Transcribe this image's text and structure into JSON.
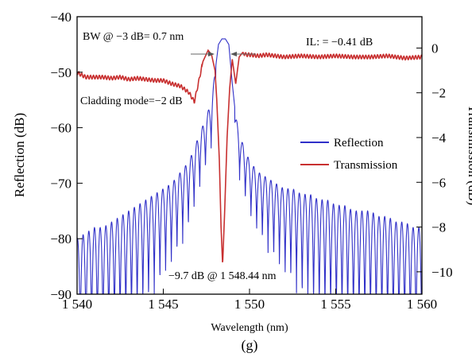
{
  "chart_data": {
    "type": "line",
    "panel_label": "(g)",
    "xlabel": "Wavelength (nm)",
    "ylabel_left": "Reflection (dB)",
    "ylabel_right": "Transmission (dB)",
    "xlim": [
      1540,
      1560
    ],
    "ylim_left": [
      -90,
      -40
    ],
    "ylim_right": [
      -11,
      1.4
    ],
    "x_ticks": [
      1540,
      1545,
      1550,
      1555,
      1560
    ],
    "x_tick_labels": [
      "1 540",
      "1 545",
      "1 550",
      "1 555",
      "1 560"
    ],
    "y_left_ticks": [
      -90,
      -80,
      -70,
      -60,
      -50,
      -40
    ],
    "y_left_tick_labels": [
      "−90",
      "−80",
      "−70",
      "−60",
      "−50",
      "−40"
    ],
    "y_right_ticks": [
      0,
      -2,
      -4,
      -6,
      -8,
      -10
    ],
    "y_right_tick_labels": [
      "0",
      "−2",
      "−4",
      "−6",
      "−8",
      "−10"
    ],
    "grid": false,
    "legend_position": "right",
    "series": [
      {
        "name": "Reflection",
        "axis": "left",
        "color": "#3030c8",
        "x": [
          1540.0,
          1540.5,
          1541.0,
          1541.5,
          1542.0,
          1542.5,
          1543.0,
          1543.5,
          1544.0,
          1544.5,
          1545.0,
          1545.5,
          1546.0,
          1546.5,
          1547.0,
          1547.5,
          1547.8,
          1548.0,
          1548.2,
          1548.4,
          1548.6,
          1548.8,
          1549.0,
          1549.2,
          1549.5,
          1550.0,
          1550.5,
          1551.0,
          1551.5,
          1552.0,
          1552.5,
          1553.0,
          1553.5,
          1554.0,
          1554.5,
          1555.0,
          1555.5,
          1556.0,
          1556.5,
          1557.0,
          1557.5,
          1558.0,
          1558.5,
          1559.0,
          1559.5,
          1560.0
        ],
        "envelope": [
          -80,
          -79,
          -78,
          -78,
          -77,
          -76,
          -75,
          -74,
          -73,
          -72,
          -71,
          -70,
          -68,
          -66,
          -62,
          -58,
          -55,
          -50,
          -45,
          -44,
          -44,
          -45,
          -52,
          -58,
          -62,
          -66,
          -68,
          -69,
          -70,
          -71,
          -71,
          -72,
          -72,
          -73,
          -73,
          -74,
          -74,
          -75,
          -75,
          -75,
          -76,
          -76,
          -77,
          -77,
          -78,
          -78
        ]
      },
      {
        "name": "Transmission",
        "axis": "right",
        "color": "#c83030",
        "x": [
          1540.0,
          1540.5,
          1541.0,
          1541.5,
          1542.0,
          1542.5,
          1543.0,
          1543.5,
          1544.0,
          1544.5,
          1545.0,
          1545.5,
          1546.0,
          1546.5,
          1546.8,
          1547.0,
          1547.3,
          1547.6,
          1547.8,
          1548.0,
          1548.1,
          1548.25,
          1548.35,
          1548.44,
          1548.55,
          1548.7,
          1548.85,
          1549.0,
          1549.2,
          1549.4,
          1549.6,
          1549.8,
          1550.0,
          1550.5,
          1551.0,
          1552.0,
          1553.0,
          1554.0,
          1555.0,
          1556.0,
          1557.0,
          1558.0,
          1559.0,
          1560.0
        ],
        "values": [
          -1.1,
          -1.3,
          -1.3,
          -1.3,
          -1.35,
          -1.3,
          -1.4,
          -1.35,
          -1.4,
          -1.45,
          -1.45,
          -1.6,
          -1.7,
          -2.0,
          -2.4,
          -1.7,
          -0.6,
          -0.1,
          -0.3,
          -1.0,
          -2.3,
          -5.0,
          -8.0,
          -9.7,
          -7.5,
          -4.0,
          -1.8,
          -0.5,
          -1.6,
          -0.4,
          -0.2,
          -0.3,
          -0.3,
          -0.35,
          -0.3,
          -0.4,
          -0.35,
          -0.4,
          -0.35,
          -0.4,
          -0.4,
          -0.35,
          -0.45,
          -0.4
        ]
      }
    ],
    "annotations": {
      "bw": "BW @ −3 dB= 0.7 nm",
      "il": "IL: = −0.41 dB",
      "cladding": "Cladding mode=−2 dB",
      "dip": "−9.7 dB @ 1 548.44 nm"
    }
  }
}
